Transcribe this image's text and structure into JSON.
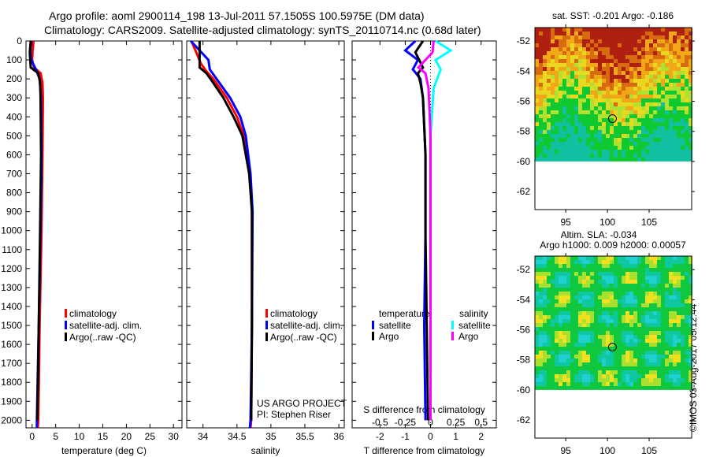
{
  "titles": {
    "line1": "Argo profile: aoml 2900114_198 13-Jul-2011 57.1505S 100.5975E (DM data)",
    "line2": "Climatology: CARS2009. Satellite-adjusted climatology: synTS_20110714.nc (0.68d later)"
  },
  "chart_data": [
    {
      "type": "line",
      "id": "temperature",
      "xlabel": "temperature (deg C)",
      "ylabel": "",
      "xlim": [
        -1.3,
        31.8
      ],
      "ylim": [
        2040,
        0
      ],
      "xticks": [
        0,
        5,
        10,
        15,
        20,
        25,
        30
      ],
      "yticks": [
        0,
        100,
        200,
        300,
        400,
        500,
        600,
        700,
        800,
        900,
        1000,
        1100,
        1200,
        1300,
        1400,
        1500,
        1600,
        1700,
        1800,
        1900,
        2000
      ],
      "legend": [
        "climatology",
        "satellite-adj. clim.",
        "Argo(..raw -QC)"
      ],
      "series": [
        {
          "name": "climatology",
          "color": "#ff0000",
          "points": [
            [
              0,
              0.3
            ],
            [
              50,
              0.1
            ],
            [
              100,
              0.0
            ],
            [
              140,
              0.4
            ],
            [
              170,
              1.8
            ],
            [
              220,
              2.2
            ],
            [
              300,
              2.3
            ],
            [
              600,
              2.2
            ],
            [
              1000,
              2.0
            ],
            [
              1500,
              1.6
            ],
            [
              2000,
              1.3
            ],
            [
              2040,
              1.2
            ]
          ]
        },
        {
          "name": "satellite-adj. clim.",
          "color": "#0000ff",
          "points": [
            [
              0,
              -0.2
            ],
            [
              50,
              -0.4
            ],
            [
              100,
              -0.2
            ],
            [
              150,
              0.8
            ],
            [
              200,
              1.6
            ],
            [
              300,
              1.9
            ],
            [
              600,
              2.0
            ],
            [
              1000,
              1.8
            ],
            [
              1500,
              1.4
            ],
            [
              2000,
              1.0
            ],
            [
              2040,
              1.0
            ]
          ]
        },
        {
          "name": "Argo(..raw -QC)",
          "color": "#000000",
          "points": [
            [
              0,
              -0.3
            ],
            [
              60,
              -0.5
            ],
            [
              140,
              -0.3
            ],
            [
              170,
              1.3
            ],
            [
              220,
              1.7
            ],
            [
              300,
              1.8
            ],
            [
              600,
              1.9
            ],
            [
              1000,
              1.7
            ],
            [
              1500,
              1.4
            ],
            [
              2000,
              1.1
            ]
          ]
        }
      ]
    },
    {
      "type": "line",
      "id": "salinity",
      "xlabel": "salinity",
      "xlim": [
        33.76,
        36.08
      ],
      "ylim": [
        2040,
        0
      ],
      "xticks": [
        34,
        34.5,
        35,
        35.5,
        36
      ],
      "xticklabels": [
        "34",
        "34.5",
        "35",
        "35.5",
        "36"
      ],
      "legend": [
        "climatology",
        "satellite-adj. clim.",
        "Argo(..raw -QC)"
      ],
      "series": [
        {
          "name": "climatology",
          "color": "#ff0000",
          "points": [
            [
              0,
              33.83
            ],
            [
              60,
              33.9
            ],
            [
              120,
              33.97
            ],
            [
              160,
              34.05
            ],
            [
              200,
              34.15
            ],
            [
              300,
              34.35
            ],
            [
              400,
              34.5
            ],
            [
              500,
              34.6
            ],
            [
              700,
              34.69
            ],
            [
              900,
              34.72
            ],
            [
              1500,
              34.72
            ],
            [
              2000,
              34.71
            ],
            [
              2040,
              34.7
            ]
          ]
        },
        {
          "name": "satellite-adj. clim.",
          "color": "#0000ff",
          "points": [
            [
              0,
              33.82
            ],
            [
              50,
              33.95
            ],
            [
              100,
              34.08
            ],
            [
              150,
              34.1
            ],
            [
              200,
              34.2
            ],
            [
              300,
              34.4
            ],
            [
              400,
              34.55
            ],
            [
              500,
              34.63
            ],
            [
              700,
              34.7
            ],
            [
              900,
              34.73
            ],
            [
              1500,
              34.72
            ],
            [
              2000,
              34.7
            ],
            [
              2040,
              34.69
            ]
          ]
        },
        {
          "name": "Argo(..raw -QC)",
          "color": "#000000",
          "points": [
            [
              0,
              33.95
            ],
            [
              140,
              33.95
            ],
            [
              170,
              34.05
            ],
            [
              220,
              34.15
            ],
            [
              300,
              34.3
            ],
            [
              400,
              34.45
            ],
            [
              500,
              34.58
            ],
            [
              700,
              34.68
            ],
            [
              900,
              34.72
            ],
            [
              1500,
              34.72
            ],
            [
              2000,
              34.71
            ]
          ]
        }
      ],
      "annotations": [
        "US ARGO PROJECT",
        "PI: Stephen Riser"
      ]
    },
    {
      "type": "line",
      "id": "differences",
      "xlabel": "T difference from climatology",
      "x2label": "S difference from climatology",
      "xlim": [
        -3.1,
        2.6
      ],
      "ylim": [
        2040,
        0
      ],
      "xticks": [
        -2,
        -1,
        0,
        1,
        2
      ],
      "xticklabels": [
        "-2",
        "-1",
        "0",
        "1",
        "2"
      ],
      "x2ticks": [
        -0.5,
        -0.25,
        0,
        0.25,
        0.5
      ],
      "x2ticklabels": [
        "-0.5",
        "-0.25",
        "0",
        "0.25",
        "0.5"
      ],
      "legend": {
        "temperature_title": "temperature",
        "salinity_title": "salinity",
        "t_sat": "satellite",
        "t_argo": "Argo",
        "s_sat": "satellite",
        "s_argo": "Argo"
      },
      "series": [
        {
          "name": "T satellite",
          "color": "#0000ff",
          "points": [
            [
              0,
              -0.6
            ],
            [
              50,
              -1.0
            ],
            [
              100,
              -0.5
            ],
            [
              150,
              -0.7
            ],
            [
              200,
              -0.4
            ],
            [
              300,
              -0.3
            ],
            [
              600,
              -0.2
            ],
            [
              1000,
              -0.2
            ],
            [
              1500,
              -0.25
            ],
            [
              2000,
              -0.2
            ]
          ]
        },
        {
          "name": "T Argo",
          "color": "#000000",
          "points": [
            [
              0,
              -0.3
            ],
            [
              60,
              -0.6
            ],
            [
              140,
              -0.3
            ],
            [
              170,
              -0.5
            ],
            [
              220,
              -0.4
            ],
            [
              300,
              -0.3
            ],
            [
              600,
              -0.2
            ],
            [
              1000,
              -0.2
            ],
            [
              1500,
              -0.15
            ],
            [
              2000,
              -0.1
            ]
          ]
        },
        {
          "name": "S satellite",
          "color": "#00ffff",
          "points": [
            [
              0,
              0.05
            ],
            [
              50,
              0.2
            ],
            [
              100,
              0.05
            ],
            [
              150,
              0.1
            ],
            [
              250,
              0.03
            ],
            [
              500,
              0.0
            ],
            [
              1000,
              0.0
            ],
            [
              2000,
              0.0
            ]
          ]
        },
        {
          "name": "S Argo",
          "color": "#ff00ff",
          "points": [
            [
              0,
              0.03
            ],
            [
              60,
              0.02
            ],
            [
              140,
              -0.12
            ],
            [
              170,
              -0.05
            ],
            [
              250,
              -0.02
            ],
            [
              500,
              0.0
            ],
            [
              1000,
              0.0
            ],
            [
              2000,
              0.0
            ]
          ]
        }
      ]
    },
    {
      "type": "heatmap",
      "id": "sst-map",
      "title": "sat. SST: -0.201  Argo: -0.186",
      "xlim": [
        91.3,
        110.1
      ],
      "ylim": [
        -63.2,
        -51.1
      ],
      "xticks": [
        95,
        100,
        105
      ],
      "yticks": [
        -52,
        -54,
        -56,
        -58,
        -60,
        -62
      ],
      "data_lat_min": -60,
      "marker": [
        100.5975,
        -57.1505
      ]
    },
    {
      "type": "heatmap",
      "id": "sla-map",
      "title": "Altim. SLA: -0.034",
      "subtitle": "Argo h1000: 0.009 h2000: 0.00057",
      "xlim": [
        91.3,
        110.1
      ],
      "ylim": [
        -63.2,
        -51.1
      ],
      "xticks": [
        95,
        100,
        105
      ],
      "yticks": [
        -52,
        -54,
        -56,
        -58,
        -60,
        -62
      ],
      "data_lat_min": -60,
      "marker": [
        100.5975,
        -57.1505
      ]
    }
  ],
  "credit": "©IMOS 03-Aug-2017 05:12:44"
}
